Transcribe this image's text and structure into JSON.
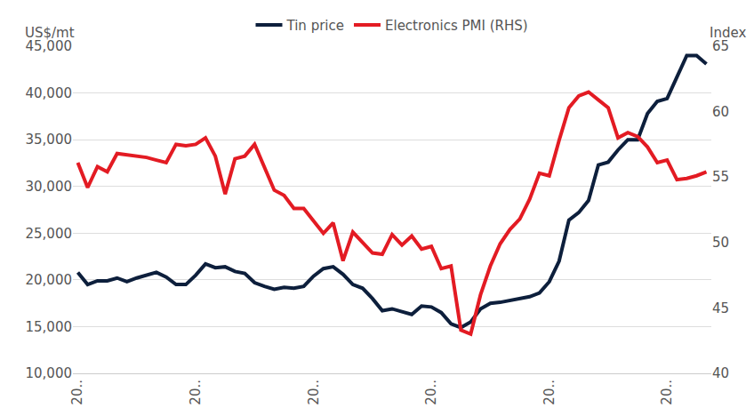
{
  "chart_data": {
    "type": "line",
    "y_label": "US$/mt",
    "y2_label": "Index",
    "categories": [
      "20..",
      null,
      null,
      null,
      null,
      null,
      null,
      null,
      null,
      null,
      null,
      null,
      "20..",
      null,
      null,
      null,
      null,
      null,
      null,
      null,
      null,
      null,
      null,
      null,
      "20..",
      null,
      null,
      null,
      null,
      null,
      null,
      null,
      null,
      null,
      null,
      null,
      "20..",
      null,
      null,
      null,
      null,
      null,
      null,
      null,
      null,
      null,
      null,
      null,
      "20..",
      null,
      null,
      null,
      null,
      null,
      null,
      null,
      null,
      null,
      null,
      null,
      "20..",
      null,
      null,
      null,
      null
    ],
    "series": [
      {
        "name": "Tin price",
        "color": "#0d1f3c",
        "values": [
          20800,
          19500,
          19900,
          19900,
          20200,
          19800,
          20200,
          20500,
          20800,
          20300,
          19500,
          19500,
          20500,
          21700,
          21300,
          21400,
          20900,
          20700,
          19700,
          19300,
          19000,
          19200,
          19100,
          19300,
          20400,
          21200,
          21400,
          20600,
          19500,
          19100,
          18000,
          16700,
          16900,
          16600,
          16300,
          17200,
          17100,
          16500,
          15300,
          14900,
          15500,
          16900,
          17500,
          17600,
          17800,
          18000,
          18200,
          18600,
          19800,
          22000,
          26400,
          27200,
          28500,
          32300,
          32600,
          33900,
          35000,
          35000,
          37800,
          39100,
          39400,
          41700,
          44000,
          44000,
          43100
        ]
      },
      {
        "name": "Electronics PMI (RHS)",
        "color": "#e31b23",
        "axis": "y2",
        "values": [
          56.1,
          54.2,
          55.8,
          55.4,
          56.8,
          56.7,
          56.6,
          56.5,
          56.3,
          56.1,
          57.5,
          57.4,
          57.5,
          58.0,
          56.6,
          53.7,
          56.4,
          56.6,
          57.5,
          55.7,
          54.0,
          53.6,
          52.6,
          52.6,
          51.7,
          50.7,
          51.5,
          48.6,
          50.8,
          50.0,
          49.2,
          49.1,
          50.6,
          49.8,
          50.5,
          49.5,
          49.7,
          48.0,
          48.2,
          43.3,
          43.0,
          46.0,
          48.2,
          49.9,
          51.0,
          51.8,
          53.3,
          55.3,
          55.1,
          57.8,
          60.3,
          61.2,
          61.5,
          60.9,
          60.3,
          58.0,
          58.4,
          58.1,
          57.3,
          56.1,
          56.3,
          54.8,
          54.9,
          55.1,
          55.4
        ]
      }
    ],
    "ylim": [
      10000,
      45000
    ],
    "yticks": [
      {
        "value": 10000,
        "label": "10,000"
      },
      {
        "value": 15000,
        "label": "15,000"
      },
      {
        "value": 20000,
        "label": "20,000"
      },
      {
        "value": 25000,
        "label": "25,000"
      },
      {
        "value": 30000,
        "label": "30,000"
      },
      {
        "value": 35000,
        "label": "35,000"
      },
      {
        "value": 40000,
        "label": "40,000"
      },
      {
        "value": 45000,
        "label": "45,000"
      }
    ],
    "y2lim": [
      40,
      65
    ],
    "y2ticks": [
      40,
      45,
      50,
      55,
      60,
      65
    ],
    "grid": true,
    "legend": "top"
  }
}
